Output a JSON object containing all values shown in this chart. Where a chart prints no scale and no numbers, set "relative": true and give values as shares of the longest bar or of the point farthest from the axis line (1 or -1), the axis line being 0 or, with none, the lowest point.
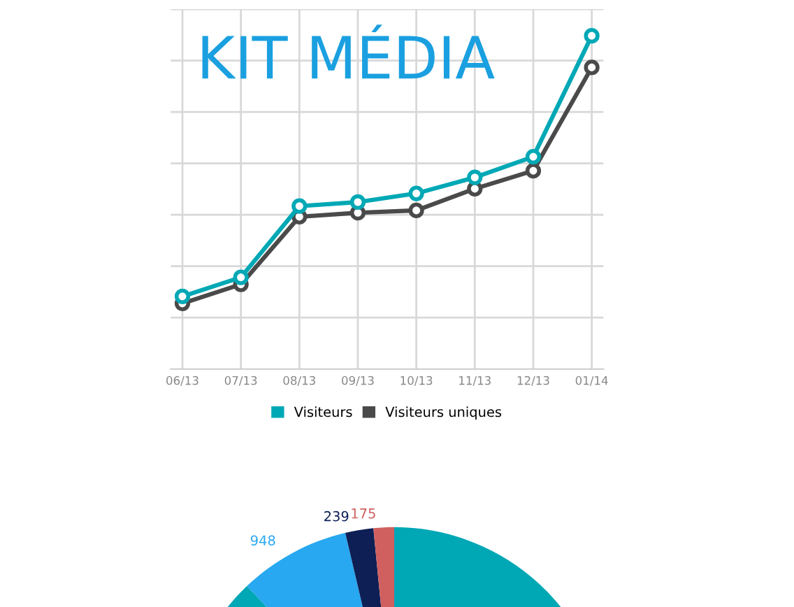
{
  "chart_data": [
    {
      "type": "line",
      "title": "KIT MÉDIA",
      "categories": [
        "06/13",
        "07/13",
        "08/13",
        "09/13",
        "10/13",
        "11/13",
        "12/13",
        "01/14"
      ],
      "relative": true,
      "grid": true,
      "marker": "circle",
      "line_style": "solid",
      "legend": "bottom",
      "series": [
        {
          "name": "Visiteurs",
          "color": "#00a8b5",
          "values": [
            0.218,
            0.275,
            0.489,
            0.501,
            0.527,
            0.575,
            0.637,
            1
          ]
        },
        {
          "name": "Visiteurs uniques",
          "color": "#4a4a4a",
          "values": [
            0.197,
            0.254,
            0.457,
            0.469,
            0.476,
            0.541,
            0.595,
            0.905
          ]
        }
      ]
    },
    {
      "type": "pie",
      "categories": [
        null,
        null,
        null,
        null
      ],
      "values": [
        9900,
        948,
        239,
        175
      ],
      "colors": [
        "#00a7b5",
        "#28a8f0",
        "#0d1f55",
        "#d06060"
      ],
      "value_labels": [
        null,
        "948",
        "239",
        "175"
      ]
    }
  ]
}
